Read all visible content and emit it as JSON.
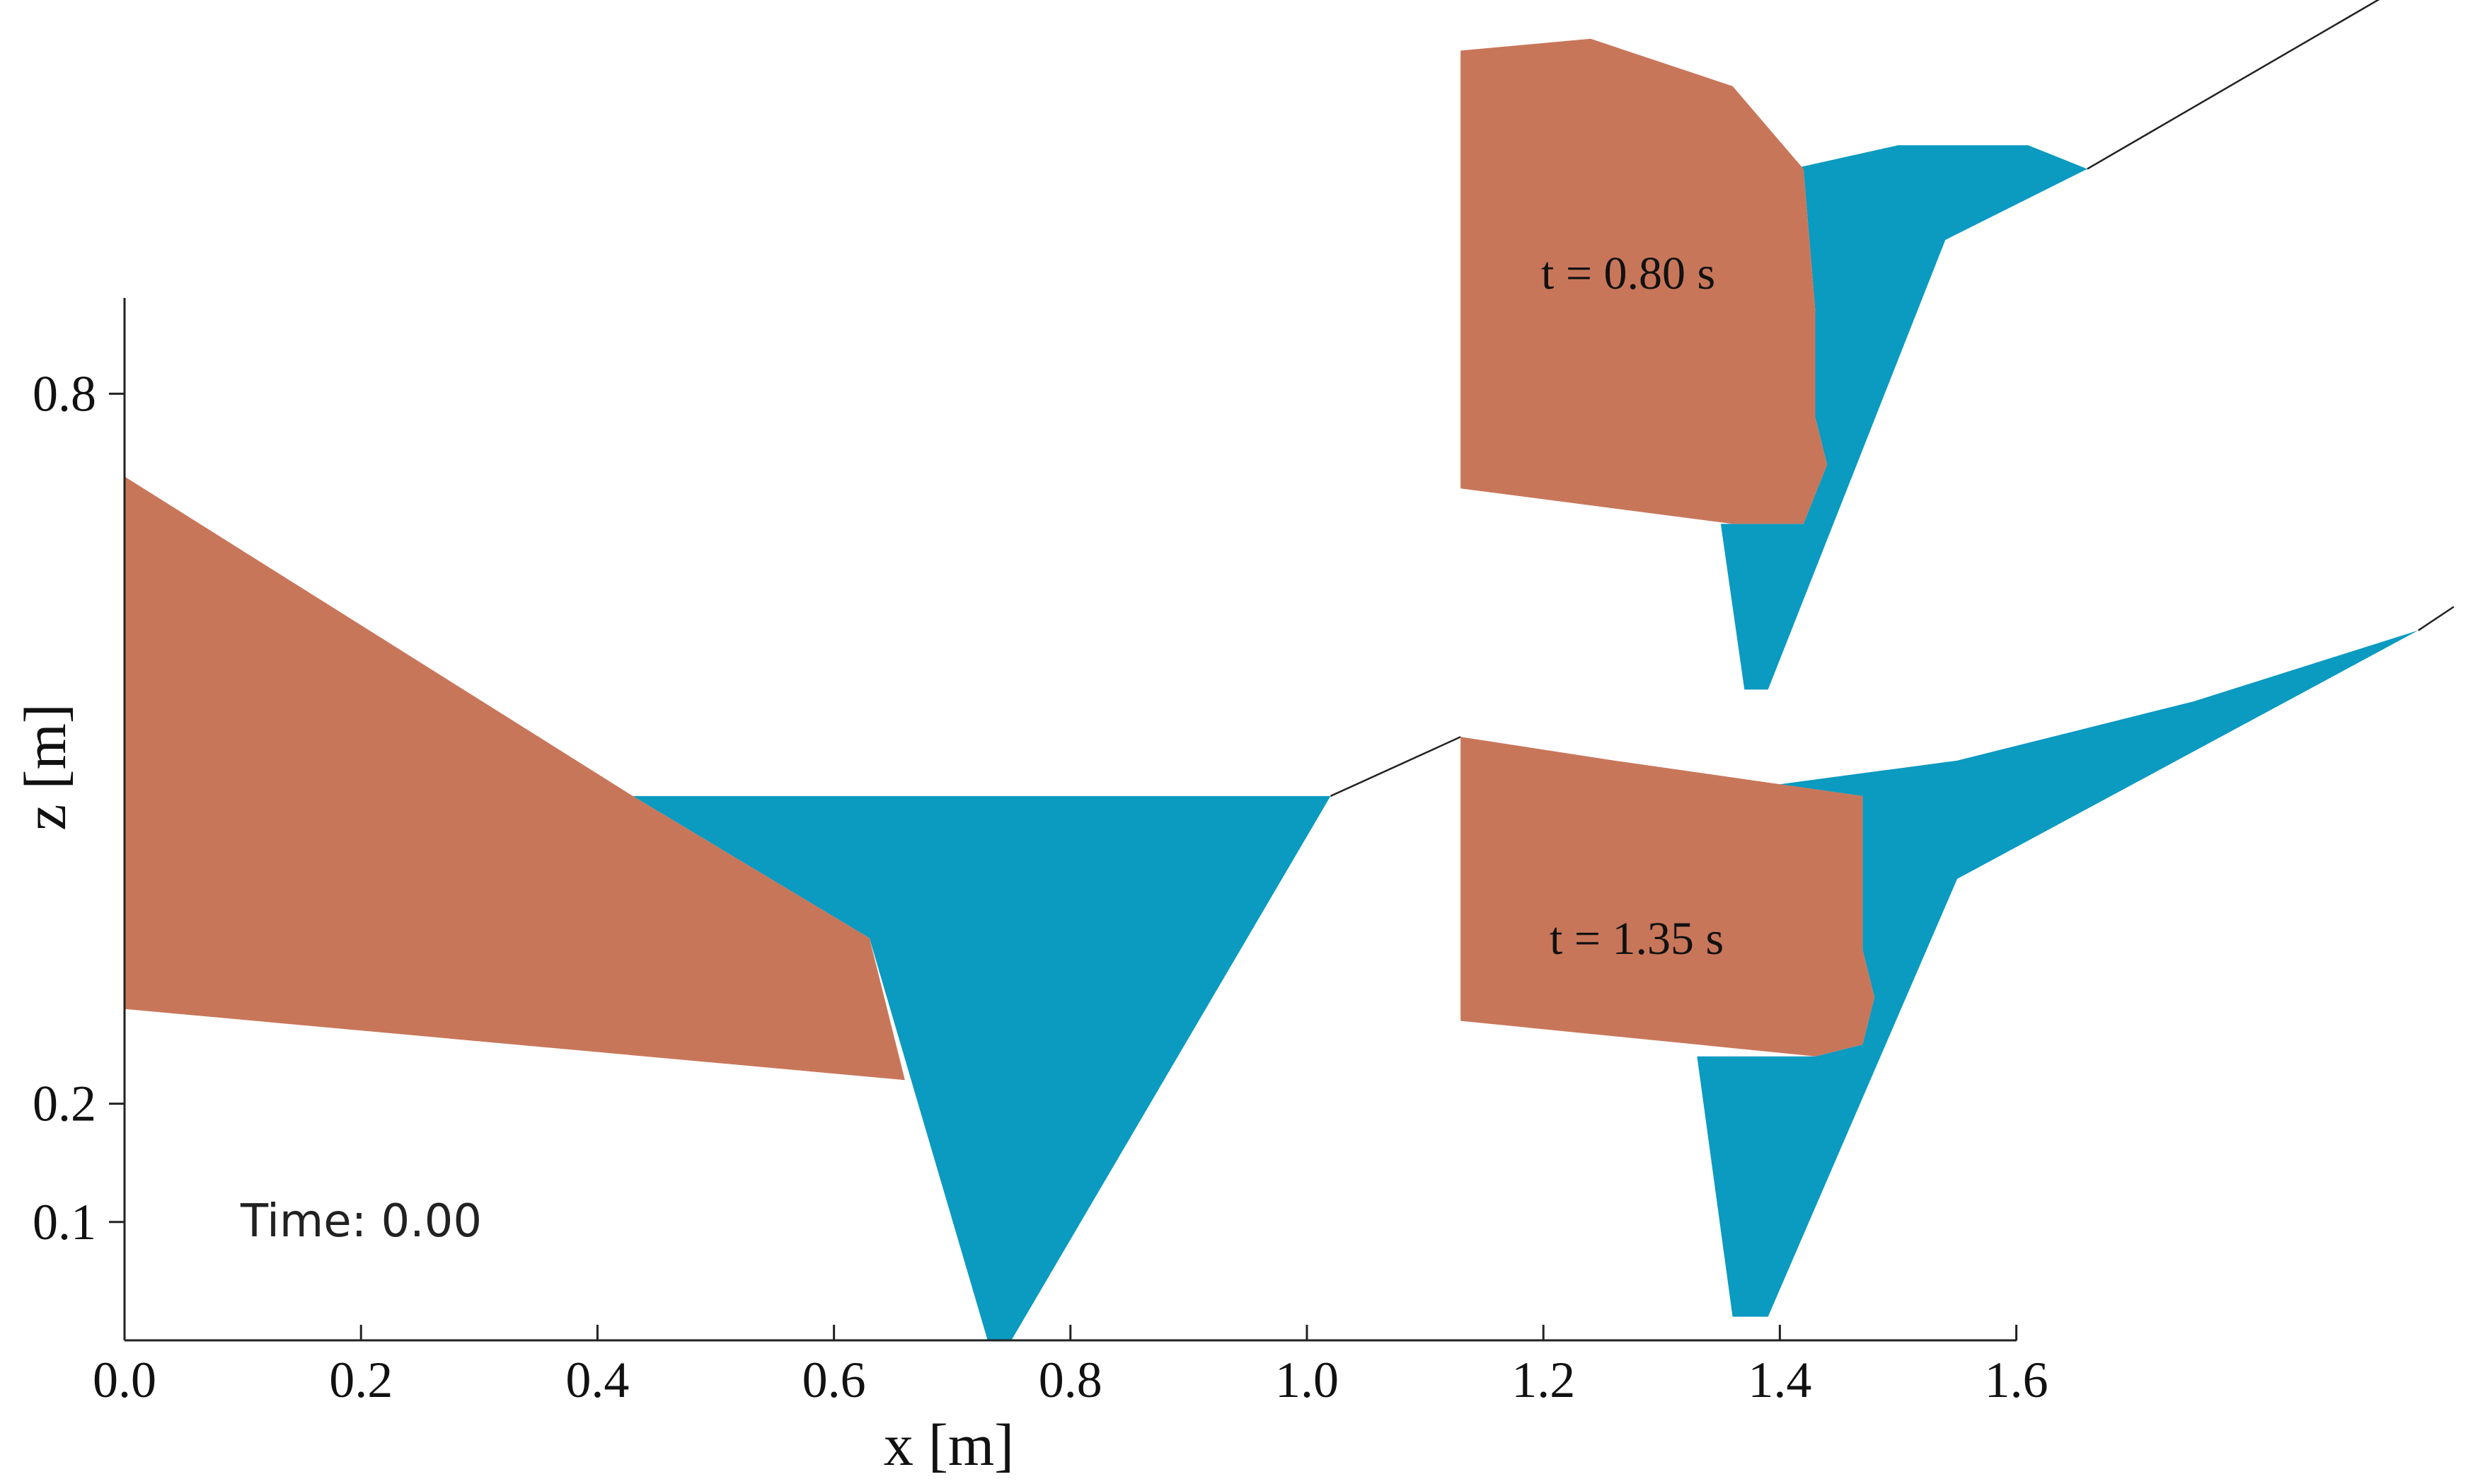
{
  "chart_data": {
    "type": "scatter",
    "title": "",
    "xlabel": "x [m]",
    "ylabel": "z [m]",
    "xlim": [
      0.0,
      1.6
    ],
    "ylim": [
      0.0,
      0.9
    ],
    "x_ticks": [
      0.0,
      0.2,
      0.4,
      0.6,
      0.8,
      1.0,
      1.2,
      1.4,
      1.6
    ],
    "x_tick_labels": [
      "0.0",
      "0.2",
      "0.4",
      "0.6",
      "0.8",
      "1.0",
      "1.2",
      "1.4",
      "1.6"
    ],
    "y_ticks": [
      0.1,
      0.2,
      0.8
    ],
    "y_tick_labels": [
      "0.1",
      "0.2",
      "0.8"
    ],
    "grid": false,
    "legend": "none",
    "colors": {
      "granular": "#c8765a",
      "water": "#0b9ac0",
      "axis": "#222222"
    },
    "main_panel": {
      "annotation": "Time: 0.00",
      "granular_polygon": [
        [
          0.0,
          0.73
        ],
        [
          0.43,
          0.46
        ],
        [
          0.63,
          0.34
        ],
        [
          0.66,
          0.22
        ],
        [
          0.0,
          0.28
        ]
      ],
      "water_polygon": [
        [
          0.43,
          0.46
        ],
        [
          1.02,
          0.46
        ],
        [
          0.75,
          0.0
        ],
        [
          0.73,
          0.0
        ],
        [
          0.63,
          0.34
        ]
      ],
      "slope_line": [
        [
          1.02,
          0.46
        ],
        [
          1.13,
          0.51
        ]
      ]
    },
    "insets": [
      {
        "label": "t = 0.80 s",
        "granular_polygon": [
          [
            1.13,
            1.09
          ],
          [
            1.24,
            1.1
          ],
          [
            1.36,
            1.06
          ],
          [
            1.42,
            0.99
          ],
          [
            1.43,
            0.87
          ],
          [
            1.43,
            0.78
          ],
          [
            1.44,
            0.74
          ],
          [
            1.42,
            0.69
          ],
          [
            1.36,
            0.69
          ],
          [
            1.13,
            0.72
          ]
        ],
        "water_polygon": [
          [
            1.41,
            0.99
          ],
          [
            1.5,
            1.01
          ],
          [
            1.61,
            1.01
          ],
          [
            1.66,
            0.99
          ],
          [
            1.54,
            0.93
          ],
          [
            1.39,
            0.55
          ],
          [
            1.37,
            0.55
          ],
          [
            1.35,
            0.69
          ],
          [
            1.42,
            0.69
          ],
          [
            1.44,
            0.74
          ],
          [
            1.43,
            0.78
          ],
          [
            1.43,
            0.87
          ],
          [
            1.42,
            0.99
          ]
        ],
        "slope_line": [
          [
            1.66,
            0.99
          ],
          [
            1.97,
            1.17
          ]
        ]
      },
      {
        "label": "t = 1.35 s",
        "granular_polygon": [
          [
            1.13,
            0.51
          ],
          [
            1.26,
            0.49
          ],
          [
            1.47,
            0.46
          ],
          [
            1.47,
            0.33
          ],
          [
            1.48,
            0.29
          ],
          [
            1.47,
            0.25
          ],
          [
            1.43,
            0.24
          ],
          [
            1.13,
            0.27
          ]
        ],
        "water_polygon": [
          [
            1.4,
            0.47
          ],
          [
            1.55,
            0.49
          ],
          [
            1.75,
            0.54
          ],
          [
            1.94,
            0.6
          ],
          [
            1.55,
            0.39
          ],
          [
            1.39,
            0.02
          ],
          [
            1.36,
            0.02
          ],
          [
            1.33,
            0.24
          ],
          [
            1.43,
            0.24
          ],
          [
            1.47,
            0.25
          ],
          [
            1.48,
            0.29
          ],
          [
            1.47,
            0.33
          ],
          [
            1.47,
            0.46
          ]
        ],
        "slope_line": [
          [
            1.94,
            0.6
          ],
          [
            1.97,
            0.62
          ]
        ]
      }
    ]
  }
}
